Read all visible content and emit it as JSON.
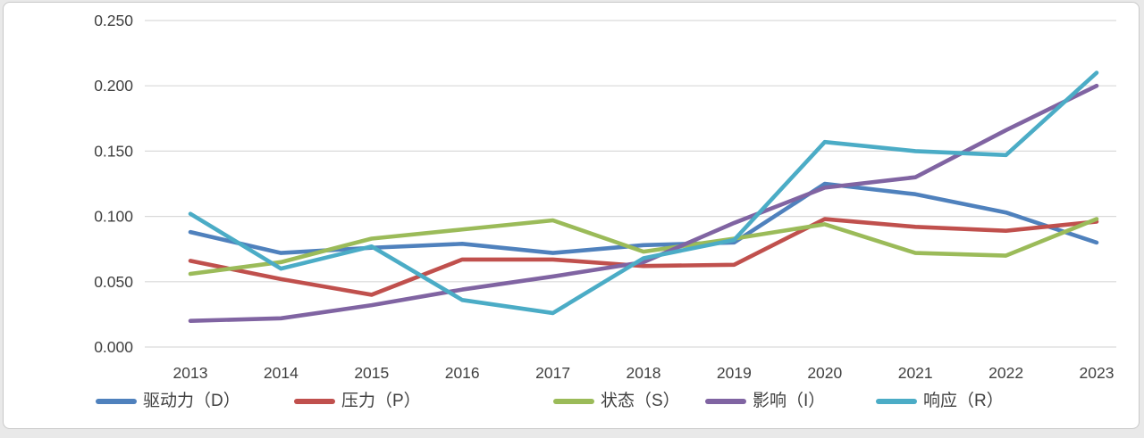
{
  "chart_data": {
    "type": "line",
    "title": "",
    "xlabel": "",
    "ylabel": "",
    "categories": [
      "2013",
      "2014",
      "2015",
      "2016",
      "2017",
      "2018",
      "2019",
      "2020",
      "2021",
      "2022",
      "2023"
    ],
    "y_ticks": [
      "0.000",
      "0.050",
      "0.100",
      "0.150",
      "0.200",
      "0.250"
    ],
    "ylim": [
      0,
      0.25
    ],
    "grid": "horizontal",
    "legend_position": "bottom",
    "colors": {
      "grid": "#d9d9d9",
      "text": "#404040"
    },
    "series": [
      {
        "id": "driver",
        "name": "驱动力（D）",
        "color": "#4F81BD",
        "values": [
          0.088,
          0.072,
          0.076,
          0.079,
          0.072,
          0.078,
          0.08,
          0.125,
          0.117,
          0.103,
          0.08
        ]
      },
      {
        "id": "pressure",
        "name": "压力（P）",
        "color": "#C0504D",
        "values": [
          0.066,
          0.052,
          0.04,
          0.067,
          0.067,
          0.062,
          0.063,
          0.098,
          0.092,
          0.089,
          0.096
        ]
      },
      {
        "id": "state",
        "name": "状态（S）",
        "color": "#9BBB59",
        "values": [
          0.056,
          0.065,
          0.083,
          0.09,
          0.097,
          0.073,
          0.083,
          0.094,
          0.072,
          0.07,
          0.098
        ]
      },
      {
        "id": "impact",
        "name": "影响（I）",
        "color": "#8064A2",
        "values": [
          0.02,
          0.022,
          0.032,
          0.044,
          0.054,
          0.065,
          0.095,
          0.122,
          0.13,
          0.166,
          0.2
        ]
      },
      {
        "id": "response",
        "name": "响应（R）",
        "color": "#4BACC6",
        "values": [
          0.102,
          0.06,
          0.077,
          0.036,
          0.026,
          0.068,
          0.082,
          0.157,
          0.15,
          0.147,
          0.21
        ]
      }
    ]
  }
}
